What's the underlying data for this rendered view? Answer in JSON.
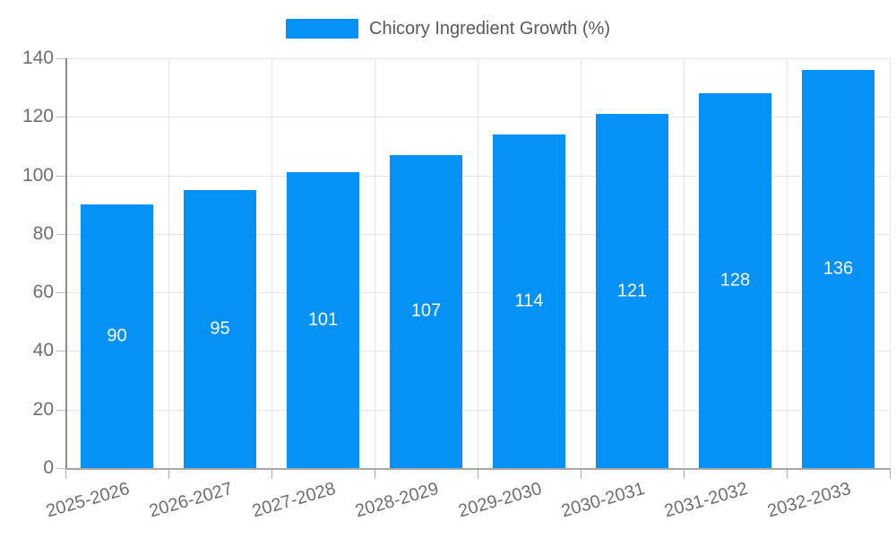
{
  "legend": {
    "label": "Chicory Ingredient Growth (%)"
  },
  "chart_data": {
    "type": "bar",
    "title": "Chicory Ingredient Growth (%)",
    "categories": [
      "2025-2026",
      "2026-2027",
      "2027-2028",
      "2028-2029",
      "2029-2030",
      "2030-2031",
      "2031-2032",
      "2032-2033"
    ],
    "values": [
      90,
      95,
      101,
      107,
      114,
      121,
      128,
      136
    ],
    "value_labels": [
      "90",
      "95",
      "101",
      "107",
      "114",
      "121",
      "128",
      "136"
    ],
    "xlabel": "",
    "ylabel": "",
    "ylim": [
      0,
      140
    ],
    "yticks": [
      0,
      20,
      40,
      60,
      80,
      100,
      120,
      140
    ],
    "grid": true,
    "legend_position": "top-center"
  },
  "colors": {
    "bar": "#0591f5",
    "bar_value_text": "#ffffff",
    "gridline": "#e6e6e6",
    "axis_y": "#8c8c8c",
    "axis_x": "#a8a8a8",
    "tick_label": "#6e6e6e",
    "legend_text": "#595959",
    "background": "#ffffff"
  }
}
